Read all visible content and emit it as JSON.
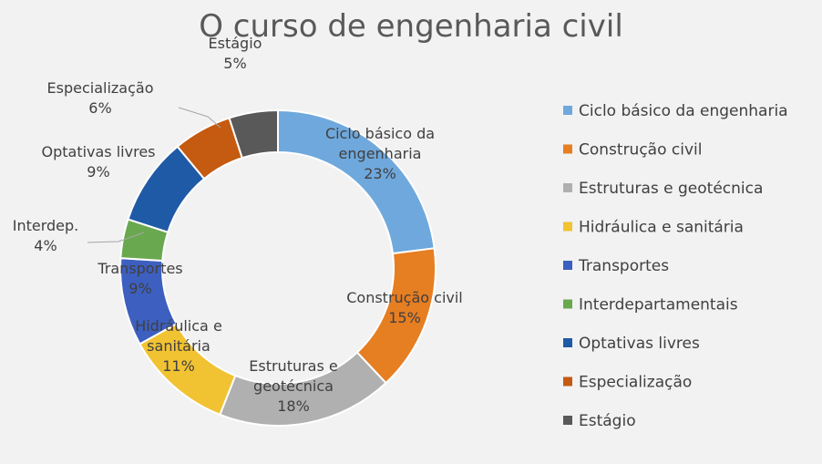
{
  "chart_data": {
    "type": "pie",
    "title": "O curso de engenharia civil",
    "categories": [
      "Ciclo básico da engenharia",
      "Construção civil",
      "Estruturas e geotécnica",
      "Hidráulica e sanitária",
      "Transportes",
      "Interdepartamentais",
      "Optativas livres",
      "Especialização",
      "Estágio"
    ],
    "values": [
      23,
      15,
      18,
      11,
      9,
      4,
      9,
      6,
      5
    ],
    "data_labels": [
      [
        "Ciclo básico da",
        "engenharia",
        "23%"
      ],
      [
        "Construção civil",
        "15%"
      ],
      [
        "Estruturas e",
        "geotécnica",
        "18%"
      ],
      [
        "Hidráulica e",
        "sanitária",
        "11%"
      ],
      [
        "Transportes",
        "9%"
      ],
      [
        "Interdep.",
        "4%"
      ],
      [
        "Optativas livres",
        "9%"
      ],
      [
        "Especialização",
        "6%"
      ],
      [
        "Estágio",
        "5%"
      ]
    ],
    "colors": [
      "#6fa8dc",
      "#e67e22",
      "#b0b0b0",
      "#f1c232",
      "#3c5fc0",
      "#6aa84f",
      "#1f5aa6",
      "#c55a11",
      "#595959"
    ],
    "donut": true,
    "legend_position": "right"
  }
}
